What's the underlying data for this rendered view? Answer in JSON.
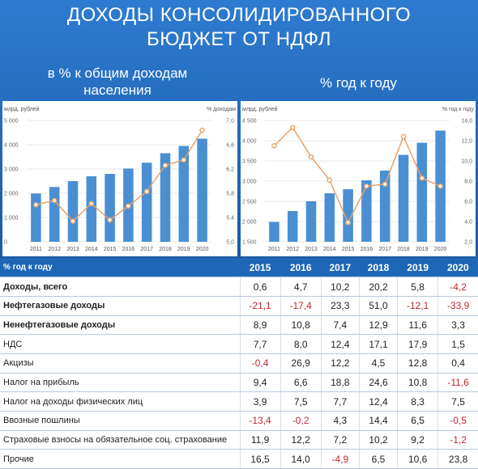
{
  "header": {
    "title_line1": "ДОХОДЫ КОНСОЛИДИРОВАННОГО",
    "title_line2": "БЮДЖЕТ ОТ НДФЛ",
    "subtitle_left_line1": "в % к общим доходам",
    "subtitle_left_line2": "населения",
    "subtitle_right": "% год к году"
  },
  "colors": {
    "bar": "#4a8fd2",
    "line": "#e8a26a",
    "header_bg": "#1d67b6",
    "negative": "#c0282e"
  },
  "chart_data": [
    {
      "type": "bar+line",
      "categories": [
        "2011",
        "2012",
        "2013",
        "2014",
        "2015",
        "2016",
        "2017",
        "2018",
        "2019",
        "2020"
      ],
      "left_axis_label": "млрд. рублей",
      "right_axis_label": "% доходам",
      "left_ylim": [
        0,
        5000
      ],
      "left_ticks": [
        "0",
        "1 000",
        "2 000",
        "3 000",
        "4 000",
        "5 000"
      ],
      "right_ylim": [
        5.0,
        7.0
      ],
      "right_ticks": [
        "5,0",
        "5,4",
        "5,8",
        "6,2",
        "6,6",
        "7,0"
      ],
      "bars": [
        1990,
        2260,
        2500,
        2700,
        2800,
        3020,
        3260,
        3650,
        3950,
        4250
      ],
      "line": [
        5.61,
        5.68,
        5.34,
        5.63,
        5.36,
        5.59,
        5.83,
        6.26,
        6.35,
        6.84
      ]
    },
    {
      "type": "bar+line",
      "categories": [
        "2011",
        "2012",
        "2013",
        "2014",
        "2015",
        "2016",
        "2017",
        "2018",
        "2019",
        "2020"
      ],
      "left_axis_label": "млрд. рублей",
      "right_axis_label": "% год к году",
      "left_ylim": [
        1500,
        4500
      ],
      "left_ticks": [
        "1 500",
        "2 000",
        "2 500",
        "3 000",
        "3 500",
        "4 000",
        "4 500"
      ],
      "right_ylim": [
        2.0,
        14.0
      ],
      "right_ticks": [
        "2,0",
        "4,0",
        "6,0",
        "8,0",
        "10,0",
        "12,0",
        "14,0"
      ],
      "bars": [
        1990,
        2260,
        2500,
        2700,
        2800,
        3020,
        3260,
        3650,
        3950,
        4250
      ],
      "line": [
        11.5,
        13.3,
        10.4,
        8.1,
        3.9,
        7.5,
        7.7,
        12.4,
        8.3,
        7.5
      ]
    }
  ],
  "table": {
    "header_label": "% год к году",
    "years": [
      "2015",
      "2016",
      "2017",
      "2018",
      "2019",
      "2020"
    ],
    "rows": [
      {
        "label": "Доходы, всего",
        "bold": true,
        "values": [
          "0,6",
          "4,7",
          "10,2",
          "20,2",
          "5,8",
          "-4,2"
        ]
      },
      {
        "label": "Нефтегазовые доходы",
        "bold": true,
        "values": [
          "-21,1",
          "-17,4",
          "23,3",
          "51,0",
          "-12,1",
          "-33,9"
        ]
      },
      {
        "label": "Ненефтегазовые доходы",
        "bold": true,
        "values": [
          "8,9",
          "10,8",
          "7,4",
          "12,9",
          "11,6",
          "3,3"
        ]
      },
      {
        "label": "НДС",
        "bold": false,
        "values": [
          "7,7",
          "8,0",
          "12,4",
          "17,1",
          "17,9",
          "1,5"
        ]
      },
      {
        "label": "Акцизы",
        "bold": false,
        "values": [
          "-0,4",
          "26,9",
          "12,2",
          "4,5",
          "12,8",
          "0,4"
        ]
      },
      {
        "label": "Налог на прибыль",
        "bold": false,
        "values": [
          "9,4",
          "6,6",
          "18,8",
          "24,6",
          "10,8",
          "-11,6"
        ]
      },
      {
        "label": "Налог на доходы физических лиц",
        "bold": false,
        "values": [
          "3,9",
          "7,5",
          "7,7",
          "12,4",
          "8,3",
          "7,5"
        ]
      },
      {
        "label": "Ввозные пошлины",
        "bold": false,
        "values": [
          "-13,4",
          "-0,2",
          "4,3",
          "14,4",
          "6,5",
          "-0,5"
        ]
      },
      {
        "label": "Страховые взносы на обязательное соц. страхование",
        "bold": false,
        "values": [
          "11,9",
          "12,2",
          "7,2",
          "10,2",
          "9,2",
          "-1,2"
        ]
      },
      {
        "label": "Прочие",
        "bold": false,
        "values": [
          "16,5",
          "14,0",
          "-4,9",
          "6,5",
          "10,6",
          "23,8"
        ]
      }
    ]
  }
}
